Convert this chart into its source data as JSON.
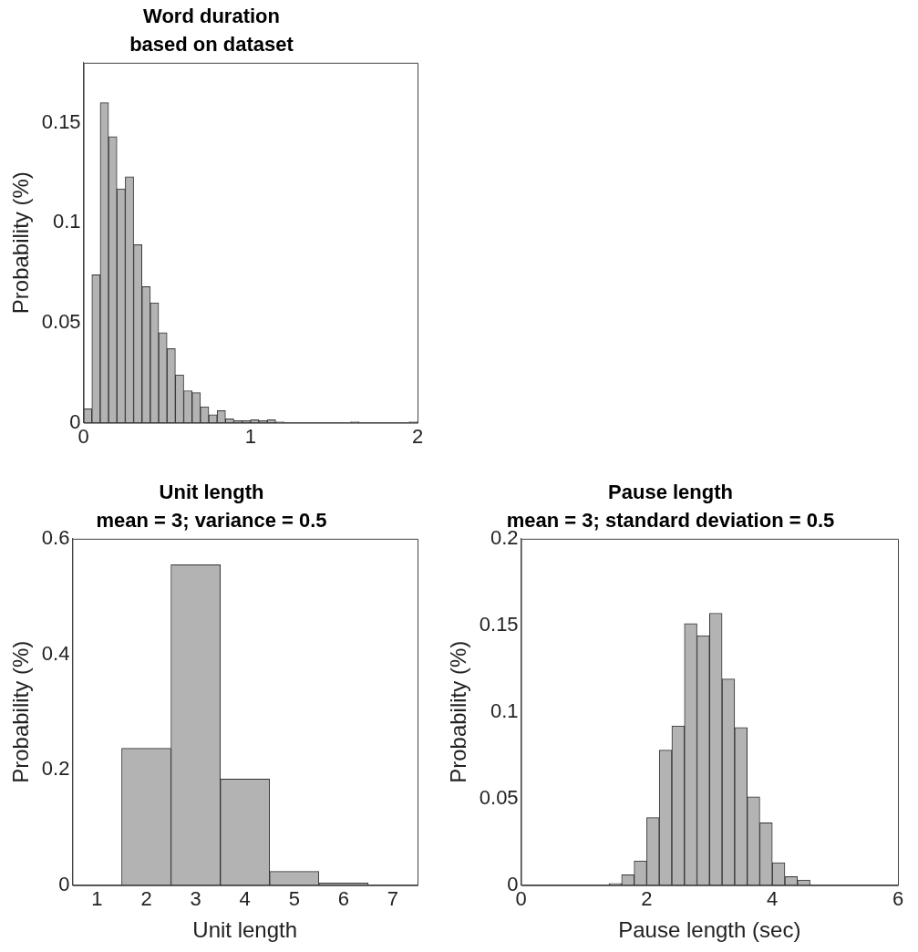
{
  "chart_data": [
    {
      "type": "histogram",
      "title": "Word duration",
      "subtitle": "based on dataset",
      "ylabel": "Probability (%)",
      "color": "#b3b3b3",
      "bins": [
        0,
        0.05,
        0.1,
        0.15,
        0.2,
        0.25,
        0.3,
        0.35,
        0.4,
        0.45,
        0.5,
        0.55,
        0.6,
        0.65,
        0.7,
        0.75,
        0.8,
        0.85,
        0.9,
        0.95,
        1,
        1.05,
        1.1,
        1.15,
        1.2,
        1.25,
        1.3,
        1.35,
        1.4,
        1.45,
        1.5,
        1.55,
        1.6,
        1.65,
        1.7,
        1.75,
        1.8,
        1.85,
        1.9,
        1.95,
        2
      ],
      "values": [
        0.007,
        0.074,
        0.16,
        0.143,
        0.117,
        0.123,
        0.089,
        0.068,
        0.06,
        0.045,
        0.037,
        0.024,
        0.016,
        0.015,
        0.008,
        0.004,
        0.006,
        0.002,
        0.001,
        0.001,
        0.0015,
        0.001,
        0.0015,
        0.0005,
        0,
        0,
        0,
        0,
        0,
        0,
        0,
        0,
        0.0005,
        0,
        0,
        0,
        0,
        0,
        0,
        0.0005
      ],
      "xlim": [
        0,
        2
      ],
      "xticks": [
        0,
        1,
        2
      ],
      "ylim": [
        0,
        0.18
      ],
      "yticks": [
        0,
        0.05,
        0.1,
        0.15
      ],
      "grid": false
    },
    {
      "type": "histogram",
      "title": "Unit length",
      "subtitle": "mean = 3; variance = 0.5",
      "xlabel": "Unit length",
      "ylabel": "Probability (%)",
      "color": "#b3b3b3",
      "bins": [
        0.5,
        1.5,
        2.5,
        3.5,
        4.5,
        5.5,
        6.5,
        7.5
      ],
      "values": [
        0,
        0.237,
        0.555,
        0.184,
        0.024,
        0.004,
        0
      ],
      "xlim": [
        0.5,
        7.5
      ],
      "xticks": [
        1,
        2,
        3,
        4,
        5,
        6,
        7
      ],
      "ylim": [
        0,
        0.6
      ],
      "yticks": [
        0,
        0.2,
        0.4,
        0.6
      ],
      "grid": false
    },
    {
      "type": "histogram",
      "title": "Pause length",
      "subtitle": "mean = 3; standard deviation = 0.5",
      "xlabel": "Pause length (sec)",
      "ylabel": "Probability (%)",
      "color": "#b3b3b3",
      "bins": [
        1.4,
        1.6,
        1.8,
        2,
        2.2,
        2.4,
        2.6,
        2.8,
        3,
        3.2,
        3.4,
        3.6,
        3.8,
        4,
        4.2,
        4.4,
        4.6
      ],
      "values": [
        0.001,
        0.006,
        0.014,
        0.039,
        0.078,
        0.092,
        0.151,
        0.144,
        0.157,
        0.119,
        0.091,
        0.051,
        0.036,
        0.013,
        0.005,
        0.003
      ],
      "xlim": [
        0,
        6
      ],
      "xticks": [
        0,
        2,
        4,
        6
      ],
      "ylim": [
        0,
        0.2
      ],
      "yticks": [
        0,
        0.05,
        0.1,
        0.15,
        0.2
      ],
      "grid": false
    }
  ]
}
